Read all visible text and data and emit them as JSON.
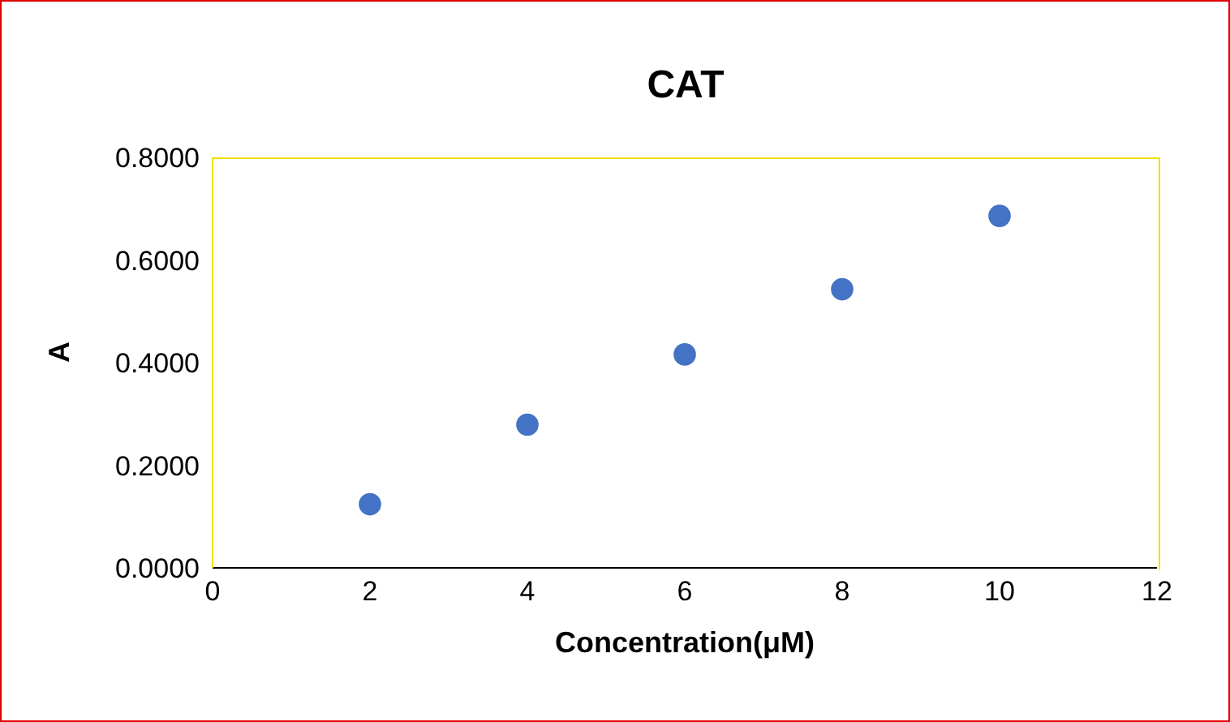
{
  "chart_data": {
    "type": "scatter",
    "title": "CAT",
    "xlabel": "Concentration(μM)",
    "ylabel": "A",
    "x": [
      2,
      4,
      6,
      8,
      10
    ],
    "series": [
      {
        "color": "#4472c4",
        "values": [
          0.124,
          0.279,
          0.416,
          0.543,
          0.686
        ]
      }
    ],
    "xlim": [
      0,
      12
    ],
    "xticks": [
      0,
      2,
      4,
      6,
      8,
      10,
      12
    ],
    "ylim": [
      0,
      0.8
    ],
    "yticks": [
      {
        "value": 0,
        "label": "0.0000"
      },
      {
        "value": 0.2,
        "label": "0.2000"
      },
      {
        "value": 0.4,
        "label": "0.4000"
      },
      {
        "value": 0.6,
        "label": "0.6000"
      },
      {
        "value": 0.8,
        "label": "0.8000"
      }
    ],
    "marker": "circle",
    "grid": false,
    "legend": false
  }
}
